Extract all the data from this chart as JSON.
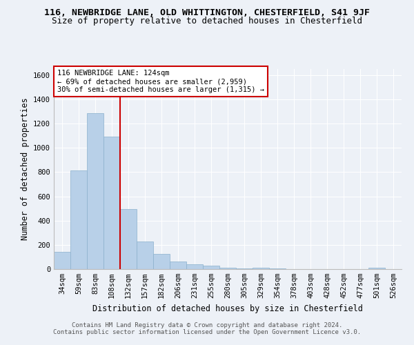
{
  "title_line1": "116, NEWBRIDGE LANE, OLD WHITTINGTON, CHESTERFIELD, S41 9JF",
  "title_line2": "Size of property relative to detached houses in Chesterfield",
  "xlabel": "Distribution of detached houses by size in Chesterfield",
  "ylabel": "Number of detached properties",
  "categories": [
    "34sqm",
    "59sqm",
    "83sqm",
    "108sqm",
    "132sqm",
    "157sqm",
    "182sqm",
    "206sqm",
    "231sqm",
    "255sqm",
    "280sqm",
    "305sqm",
    "329sqm",
    "354sqm",
    "378sqm",
    "403sqm",
    "428sqm",
    "452sqm",
    "477sqm",
    "501sqm",
    "526sqm"
  ],
  "values": [
    140,
    815,
    1285,
    1090,
    495,
    230,
    125,
    65,
    38,
    26,
    14,
    5,
    14,
    3,
    1,
    0,
    0,
    0,
    0,
    10,
    0
  ],
  "bar_color": "#b8d0e8",
  "bar_edge_color": "#8ab0cc",
  "vline_x": 4.0,
  "annotation_line1": "116 NEWBRIDGE LANE: 124sqm",
  "annotation_line2": "← 69% of detached houses are smaller (2,959)",
  "annotation_line3": "30% of semi-detached houses are larger (1,315) →",
  "annotation_box_color": "#ffffff",
  "annotation_box_edge": "#cc0000",
  "vline_color": "#cc0000",
  "ylim": [
    0,
    1650
  ],
  "yticks": [
    0,
    200,
    400,
    600,
    800,
    1000,
    1200,
    1400,
    1600
  ],
  "footer_line1": "Contains HM Land Registry data © Crown copyright and database right 2024.",
  "footer_line2": "Contains public sector information licensed under the Open Government Licence v3.0.",
  "background_color": "#edf1f7",
  "plot_background": "#edf1f7",
  "title1_fontsize": 9.5,
  "title2_fontsize": 9,
  "axis_label_fontsize": 8.5,
  "tick_fontsize": 7.5,
  "annotation_fontsize": 7.5,
  "footer_fontsize": 6.5
}
